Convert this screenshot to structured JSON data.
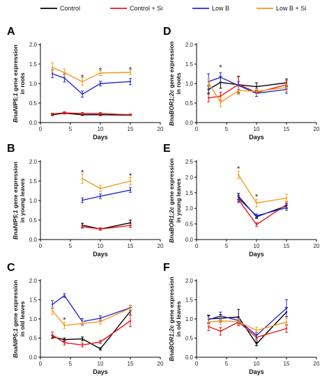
{
  "legend": [
    {
      "name": "Control",
      "color": "#000000"
    },
    {
      "name": "Control + Si",
      "color": "#e8161b"
    },
    {
      "name": "Low B",
      "color": "#1f2bd6"
    },
    {
      "name": "Low B + Si",
      "color": "#f39a1c"
    }
  ],
  "chart_data": [
    {
      "type": "line",
      "panel": "A",
      "ylabel_italic": "BnaNIP5;1",
      "ylabel_line1": " gene expression",
      "ylabel_line2": "in roots",
      "xlabel": "Days",
      "xlim": [
        0,
        20
      ],
      "ylim": [
        0,
        2
      ],
      "xticks": [
        "0",
        "5",
        "10",
        "15",
        "20"
      ],
      "yticks": [
        "0.0",
        "0.5",
        "1.0",
        "1.5",
        "2.0"
      ],
      "series": [
        {
          "name": "Control",
          "x": [
            2,
            4,
            7,
            10,
            15
          ],
          "y": [
            0.2,
            0.24,
            0.2,
            0.2,
            0.19
          ],
          "err": [
            0.02,
            0.02,
            0.02,
            0.02,
            0.01
          ]
        },
        {
          "name": "Control + Si",
          "x": [
            2,
            4,
            7,
            10,
            15
          ],
          "y": [
            0.22,
            0.25,
            0.23,
            0.23,
            0.2
          ],
          "err": [
            0.02,
            0.03,
            0.03,
            0.03,
            0.02
          ]
        },
        {
          "name": "Low B",
          "x": [
            2,
            4,
            7,
            10,
            15
          ],
          "y": [
            1.25,
            1.14,
            0.73,
            1.0,
            1.05
          ],
          "err": [
            0.1,
            0.1,
            0.08,
            0.06,
            0.08
          ]
        },
        {
          "name": "Low B + Si",
          "x": [
            2,
            4,
            7,
            10,
            15
          ],
          "y": [
            1.41,
            1.28,
            1.05,
            1.27,
            1.29
          ],
          "err": [
            0.12,
            0.1,
            0.1,
            0.06,
            0.06
          ]
        }
      ],
      "annotations": [
        {
          "text": "*",
          "x": 7,
          "y": 1.17
        },
        {
          "text": "*",
          "x": 10,
          "y": 1.35
        },
        {
          "text": "*",
          "x": 15,
          "y": 1.37
        }
      ]
    },
    {
      "type": "line",
      "panel": "D",
      "ylabel_italic": "BnaBOR1;2c",
      "ylabel_line1": " gene expression",
      "ylabel_line2": "in roots",
      "xlabel": "Days",
      "xlim": [
        0,
        20
      ],
      "ylim": [
        0,
        2
      ],
      "xticks": [
        "0",
        "5",
        "10",
        "15",
        "20"
      ],
      "yticks": [
        "0.0",
        "0.5",
        "1.0",
        "1.5",
        "2.0"
      ],
      "series": [
        {
          "name": "Control",
          "x": [
            2,
            4,
            7,
            10,
            15
          ],
          "y": [
            0.85,
            1.03,
            0.97,
            0.92,
            1.02
          ],
          "err": [
            0.1,
            0.15,
            0.22,
            0.1,
            0.1
          ]
        },
        {
          "name": "Control + Si",
          "x": [
            2,
            4,
            7,
            10,
            15
          ],
          "y": [
            0.63,
            0.68,
            0.98,
            0.77,
            0.97
          ],
          "err": [
            0.1,
            0.1,
            0.2,
            0.1,
            0.1
          ]
        },
        {
          "name": "Low B",
          "x": [
            2,
            4,
            7,
            10,
            15
          ],
          "y": [
            1.05,
            1.16,
            0.95,
            0.75,
            0.85
          ],
          "err": [
            0.2,
            0.12,
            0.1,
            0.08,
            0.1
          ]
        },
        {
          "name": "Low B + Si",
          "x": [
            2,
            4,
            7,
            10,
            15
          ],
          "y": [
            1.02,
            0.52,
            0.82,
            0.8,
            0.9
          ],
          "err": [
            0.1,
            0.12,
            0.1,
            0.06,
            0.1
          ]
        }
      ],
      "annotations": [
        {
          "text": "*",
          "x": 4,
          "y": 1.42
        }
      ]
    },
    {
      "type": "line",
      "panel": "B",
      "ylabel_italic": "BnaNIP5;1",
      "ylabel_line1": " gene expression",
      "ylabel_line2": "in young leaves",
      "xlabel": "Days",
      "xlim": [
        0,
        20
      ],
      "ylim": [
        0,
        2
      ],
      "xticks": [
        "0",
        "5",
        "10",
        "15",
        "20"
      ],
      "yticks": [
        "0.0",
        "0.5",
        "1.0",
        "1.5",
        "2.0"
      ],
      "series": [
        {
          "name": "Control",
          "x": [
            7,
            10,
            15
          ],
          "y": [
            0.37,
            0.27,
            0.43
          ],
          "err": [
            0.05,
            0.03,
            0.07
          ]
        },
        {
          "name": "Control + Si",
          "x": [
            7,
            10,
            15
          ],
          "y": [
            0.33,
            0.27,
            0.36
          ],
          "err": [
            0.04,
            0.03,
            0.05
          ]
        },
        {
          "name": "Low B",
          "x": [
            7,
            10,
            15
          ],
          "y": [
            1.01,
            1.11,
            1.27
          ],
          "err": [
            0.06,
            0.06,
            0.06
          ]
        },
        {
          "name": "Low B + Si",
          "x": [
            7,
            10,
            15
          ],
          "y": [
            1.56,
            1.31,
            1.5
          ],
          "err": [
            0.12,
            0.08,
            0.1
          ]
        }
      ],
      "annotations": [
        {
          "text": "*",
          "x": 7,
          "y": 1.72
        },
        {
          "text": "*",
          "x": 15,
          "y": 1.64
        }
      ]
    },
    {
      "type": "line",
      "panel": "E",
      "ylabel_italic": "BnaBOR1;2c",
      "ylabel_line1": " gene expression",
      "ylabel_line2": "in young leaves",
      "xlabel": "Days",
      "xlim": [
        0,
        20
      ],
      "ylim": [
        0,
        2.5
      ],
      "xticks": [
        "0",
        "5",
        "10",
        "15",
        "20"
      ],
      "yticks": [
        "0.0",
        "0.5",
        "1.0",
        "1.5",
        "2.0",
        "2.5"
      ],
      "series": [
        {
          "name": "Control",
          "x": [
            7,
            10,
            15
          ],
          "y": [
            1.38,
            0.73,
            1.08
          ],
          "err": [
            0.1,
            0.05,
            0.08
          ]
        },
        {
          "name": "Control + Si",
          "x": [
            7,
            10,
            15
          ],
          "y": [
            1.28,
            0.48,
            1.12
          ],
          "err": [
            0.1,
            0.06,
            0.1
          ]
        },
        {
          "name": "Low B",
          "x": [
            7,
            10,
            15
          ],
          "y": [
            1.32,
            0.76,
            1.02
          ],
          "err": [
            0.1,
            0.06,
            0.08
          ]
        },
        {
          "name": "Low B + Si",
          "x": [
            7,
            10,
            15
          ],
          "y": [
            2.07,
            1.17,
            1.33
          ],
          "err": [
            0.12,
            0.12,
            0.12
          ]
        }
      ],
      "annotations": [
        {
          "text": "*",
          "x": 7,
          "y": 2.28
        },
        {
          "text": "*",
          "x": 10,
          "y": 1.38
        }
      ]
    },
    {
      "type": "line",
      "panel": "C",
      "ylabel_italic": "BnaNIP5;1",
      "ylabel_line1": " gene expression",
      "ylabel_line2": "in old leaves",
      "xlabel": "Days",
      "xlim": [
        0,
        20
      ],
      "ylim": [
        0,
        2
      ],
      "xticks": [
        "0",
        "5",
        "10",
        "15",
        "20"
      ],
      "yticks": [
        "0.0",
        "0.5",
        "1.0",
        "1.5",
        "2.0"
      ],
      "series": [
        {
          "name": "Control",
          "x": [
            2,
            4,
            7,
            10,
            15
          ],
          "y": [
            0.53,
            0.46,
            0.48,
            0.22,
            1.2
          ],
          "err": [
            0.04,
            0.04,
            0.05,
            0.03,
            0.1
          ]
        },
        {
          "name": "Control + Si",
          "x": [
            2,
            4,
            7,
            10,
            15
          ],
          "y": [
            0.58,
            0.38,
            0.32,
            0.4,
            0.95
          ],
          "err": [
            0.08,
            0.06,
            0.05,
            0.04,
            0.15
          ]
        },
        {
          "name": "Low B",
          "x": [
            2,
            4,
            7,
            10,
            15
          ],
          "y": [
            1.38,
            1.61,
            0.93,
            1.02,
            1.29
          ],
          "err": [
            0.1,
            0.05,
            0.08,
            0.06,
            0.06
          ]
        },
        {
          "name": "Low B + Si",
          "x": [
            2,
            4,
            7,
            10,
            15
          ],
          "y": [
            1.22,
            0.83,
            0.88,
            0.93,
            1.28
          ],
          "err": [
            0.1,
            0.08,
            0.06,
            0.06,
            0.08
          ]
        }
      ],
      "annotations": [
        {
          "text": "*",
          "x": 4,
          "y": 0.98
        }
      ]
    },
    {
      "type": "line",
      "panel": "F",
      "ylabel_italic": "BnaBOR1;2c",
      "ylabel_line1": " gene expression",
      "ylabel_line2": "in old leaves",
      "xlabel": "Days",
      "xlim": [
        0,
        20
      ],
      "ylim": [
        0,
        2
      ],
      "xticks": [
        "0",
        "5",
        "10",
        "15",
        "20"
      ],
      "yticks": [
        "0.0",
        "0.5",
        "1.0",
        "1.5",
        "2.0"
      ],
      "series": [
        {
          "name": "Control",
          "x": [
            2,
            4,
            7,
            10,
            15
          ],
          "y": [
            1.0,
            1.02,
            1.05,
            0.35,
            1.18
          ],
          "err": [
            0.1,
            0.1,
            0.2,
            0.05,
            0.12
          ]
        },
        {
          "name": "Control + Si",
          "x": [
            2,
            4,
            7,
            10,
            15
          ],
          "y": [
            0.8,
            0.68,
            0.92,
            0.52,
            0.75
          ],
          "err": [
            0.1,
            0.1,
            0.1,
            0.08,
            0.1
          ]
        },
        {
          "name": "Low B",
          "x": [
            2,
            4,
            7,
            10,
            15
          ],
          "y": [
            0.98,
            1.08,
            0.96,
            0.57,
            1.28
          ],
          "err": [
            0.1,
            0.1,
            0.08,
            0.08,
            0.22
          ]
        },
        {
          "name": "Low B + Si",
          "x": [
            2,
            4,
            7,
            10,
            15
          ],
          "y": [
            0.92,
            0.95,
            0.93,
            0.7,
            0.92
          ],
          "err": [
            0.1,
            0.1,
            0.08,
            0.08,
            0.1
          ]
        }
      ],
      "annotations": []
    }
  ]
}
